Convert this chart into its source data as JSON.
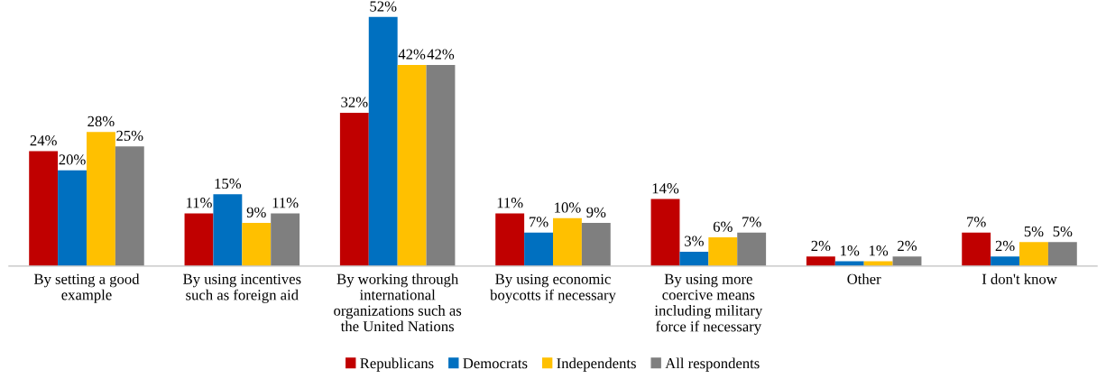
{
  "chart_data": {
    "type": "bar",
    "categories": [
      "By setting a good\nexample",
      "By using incentives\nsuch as foreign aid",
      "By working through\ninternational\norganizations such as\nthe United Nations",
      "By using economic\nboycotts if necessary",
      "By using more\ncoercive means\nincluding military\nforce if necessary",
      "Other",
      "I don't know"
    ],
    "series": [
      {
        "name": "Republicans",
        "color": "#c00000",
        "values": [
          24,
          11,
          32,
          11,
          14,
          2,
          7
        ],
        "value_labels": [
          "24%",
          "11%",
          "32%",
          "11%",
          "14%",
          "2%",
          "7%"
        ]
      },
      {
        "name": "Democrats",
        "color": "#0070c0",
        "values": [
          20,
          15,
          52,
          7,
          3,
          1,
          2
        ],
        "value_labels": [
          "20%",
          "15%",
          "52%",
          "7%",
          "3%",
          "1%",
          "2%"
        ]
      },
      {
        "name": "Independents",
        "color": "#ffc000",
        "values": [
          28,
          9,
          42,
          10,
          6,
          1,
          5
        ],
        "value_labels": [
          "28%",
          "9%",
          "42%",
          "10%",
          "6%",
          "1%",
          "5%"
        ]
      },
      {
        "name": "All respondents",
        "color": "#7f7f7f",
        "values": [
          25,
          11,
          42,
          9,
          7,
          2,
          5
        ],
        "value_labels": [
          "25%",
          "11%",
          "42%",
          "9%",
          "7%",
          "2%",
          "5%"
        ]
      }
    ],
    "legend": "bottom",
    "grid": false
  }
}
